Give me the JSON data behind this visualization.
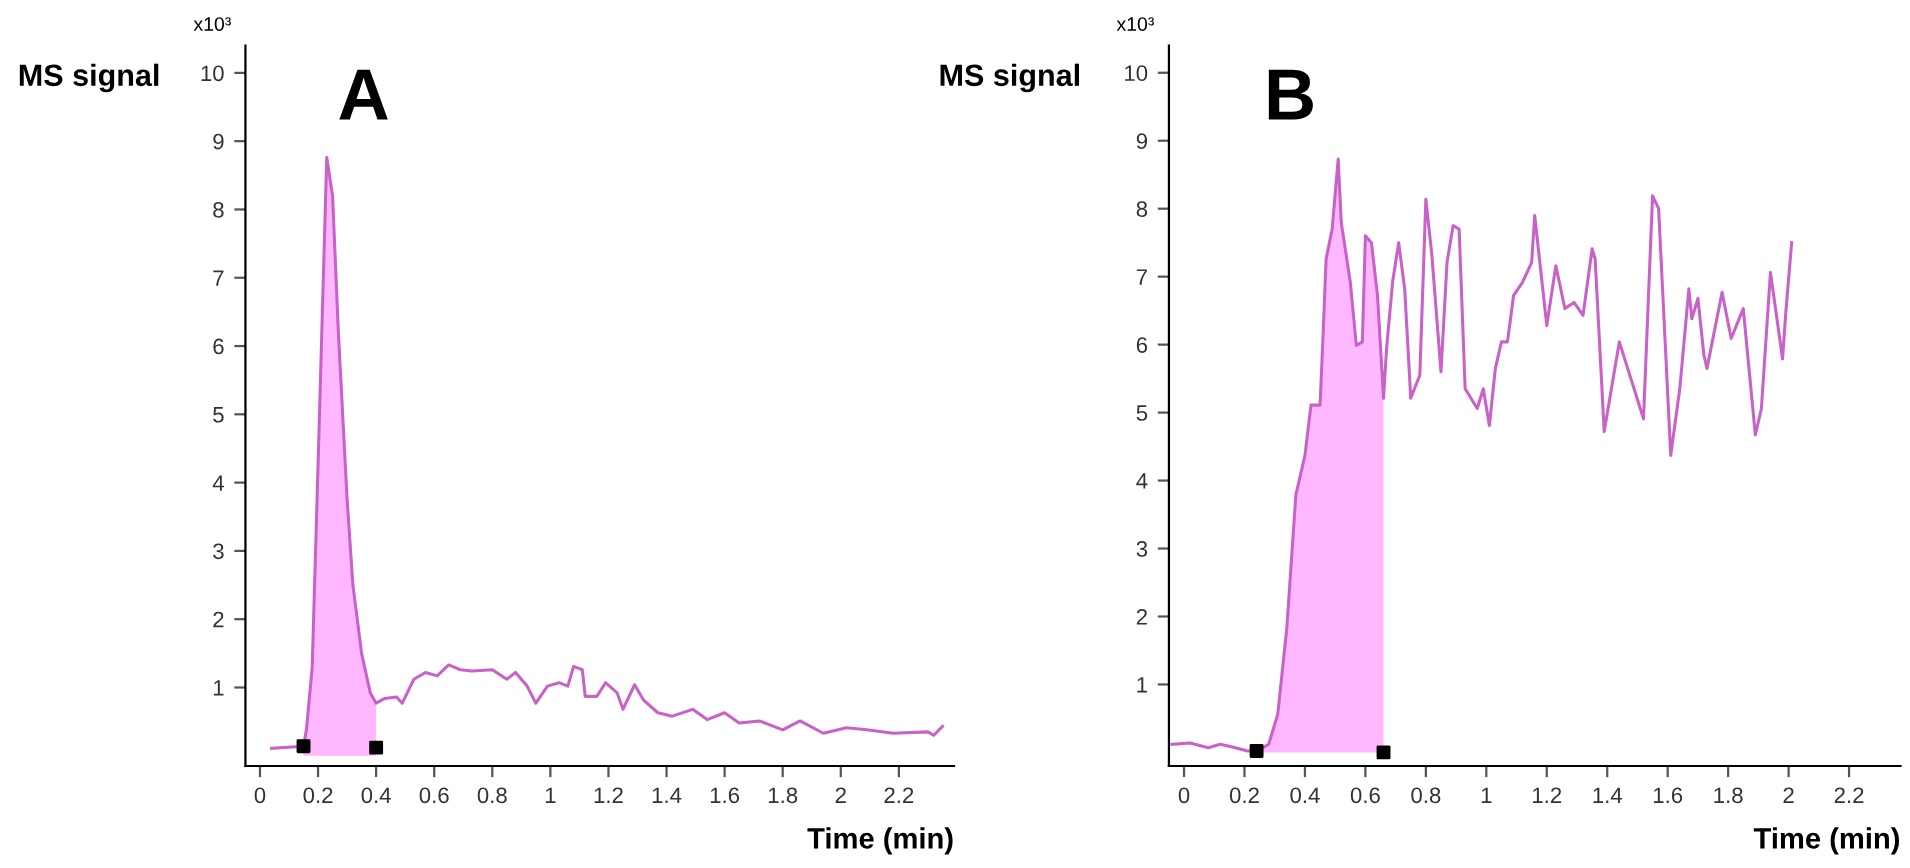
{
  "chart_data": [
    {
      "type": "line",
      "title": "A",
      "ylabel": "MS signal",
      "xlabel": "Time (min)",
      "annotations": [
        "x10³"
      ],
      "xlim": [
        -0.05,
        2.39
      ],
      "ylim": [
        -0.15,
        10.4
      ],
      "xticks": [
        0,
        0.2,
        0.4,
        0.6,
        0.8,
        1,
        1.2,
        1.4,
        1.6,
        1.8,
        2,
        2.2
      ],
      "yticks": [
        1,
        2,
        3,
        4,
        5,
        6,
        7,
        8,
        9,
        10
      ],
      "grid": false,
      "series": [
        {
          "type": "area",
          "color": "#ffb8ff",
          "x": [
            0.15,
            0.16,
            0.18,
            0.2,
            0.23,
            0.25,
            0.27,
            0.3,
            0.32,
            0.35,
            0.38,
            0.4
          ],
          "values": [
            0.14,
            0.38,
            1.3,
            4.25,
            8.76,
            8.2,
            6.2,
            3.76,
            2.5,
            1.5,
            0.92,
            0.77
          ]
        },
        {
          "color": "#c862c8",
          "x": [
            0.04,
            0.15,
            0.16,
            0.18,
            0.2,
            0.23,
            0.25,
            0.27,
            0.3,
            0.32,
            0.35,
            0.38,
            0.4,
            0.43,
            0.47,
            0.49,
            0.53,
            0.57,
            0.61,
            0.65,
            0.69,
            0.73,
            0.8,
            0.85,
            0.88,
            0.92,
            0.95,
            0.99,
            1.03,
            1.06,
            1.08,
            1.11,
            1.12,
            1.16,
            1.19,
            1.23,
            1.25,
            1.29,
            1.32,
            1.37,
            1.42,
            1.49,
            1.54,
            1.6,
            1.65,
            1.72,
            1.8,
            1.86,
            1.94,
            2.02,
            2.09,
            2.18,
            2.3,
            2.32,
            2.35
          ],
          "values": [
            0.11,
            0.14,
            0.38,
            1.3,
            4.25,
            8.76,
            8.2,
            6.2,
            3.76,
            2.5,
            1.5,
            0.92,
            0.77,
            0.84,
            0.86,
            0.77,
            1.12,
            1.22,
            1.17,
            1.33,
            1.26,
            1.24,
            1.26,
            1.12,
            1.22,
            1.02,
            0.77,
            1.02,
            1.07,
            1.02,
            1.31,
            1.26,
            0.87,
            0.87,
            1.07,
            0.92,
            0.68,
            1.04,
            0.82,
            0.63,
            0.58,
            0.68,
            0.53,
            0.63,
            0.48,
            0.51,
            0.38,
            0.51,
            0.33,
            0.41,
            0.38,
            0.33,
            0.35,
            0.3,
            0.43
          ]
        },
        {
          "type": "scatter",
          "color": "#000000",
          "marker": "square",
          "x": [
            0.15,
            0.4
          ],
          "values": [
            0.14,
            0.12
          ]
        }
      ]
    },
    {
      "type": "line",
      "title": "B",
      "ylabel": "MS signal",
      "xlabel": "Time (min)",
      "annotations": [
        "x10³"
      ],
      "xlim": [
        -0.05,
        2.37
      ],
      "ylim": [
        -0.2,
        10.4
      ],
      "xticks": [
        0,
        0.2,
        0.4,
        0.6,
        0.8,
        1,
        1.2,
        1.4,
        1.6,
        1.8,
        2,
        2.2
      ],
      "yticks": [
        1,
        2,
        3,
        4,
        5,
        6,
        7,
        8,
        9,
        10
      ],
      "grid": false,
      "series": [
        {
          "type": "area",
          "color": "#ffb8ff",
          "x": [
            0.24,
            0.28,
            0.31,
            0.34,
            0.37,
            0.4,
            0.42,
            0.45,
            0.46,
            0.47,
            0.49,
            0.51,
            0.52,
            0.55,
            0.57,
            0.59,
            0.6,
            0.62,
            0.64,
            0.66
          ],
          "values": [
            0.02,
            0.12,
            0.56,
            1.83,
            3.79,
            4.37,
            5.11,
            5.11,
            6.14,
            7.26,
            7.7,
            8.73,
            7.8,
            6.92,
            5.99,
            6.04,
            7.6,
            7.5,
            6.72,
            5.21
          ]
        },
        {
          "color": "#c862c8",
          "x": [
            -0.04,
            0.02,
            0.08,
            0.12,
            0.17,
            0.21,
            0.24,
            0.28,
            0.31,
            0.34,
            0.37,
            0.4,
            0.42,
            0.45,
            0.46,
            0.47,
            0.49,
            0.51,
            0.52,
            0.55,
            0.57,
            0.59,
            0.6,
            0.62,
            0.64,
            0.66,
            0.67,
            0.69,
            0.71,
            0.73,
            0.75,
            0.78,
            0.8,
            0.82,
            0.85,
            0.87,
            0.89,
            0.91,
            0.93,
            0.97,
            0.99,
            1.01,
            1.03,
            1.05,
            1.07,
            1.09,
            1.12,
            1.15,
            1.16,
            1.2,
            1.23,
            1.26,
            1.29,
            1.32,
            1.35,
            1.36,
            1.39,
            1.44,
            1.52,
            1.55,
            1.57,
            1.61,
            1.64,
            1.67,
            1.68,
            1.7,
            1.72,
            1.73,
            1.78,
            1.81,
            1.85,
            1.89,
            1.91,
            1.94,
            1.98,
            1.99,
            2.01
          ],
          "values": [
            0.12,
            0.14,
            0.07,
            0.12,
            0.07,
            0.02,
            0.02,
            0.12,
            0.56,
            1.83,
            3.79,
            4.37,
            5.11,
            5.11,
            6.14,
            7.26,
            7.7,
            8.73,
            7.8,
            6.92,
            5.99,
            6.04,
            7.6,
            7.5,
            6.72,
            5.21,
            5.94,
            6.92,
            7.5,
            6.82,
            5.21,
            5.55,
            8.14,
            7.31,
            5.6,
            7.21,
            7.75,
            7.7,
            5.35,
            5.06,
            5.35,
            4.81,
            5.65,
            6.04,
            6.04,
            6.72,
            6.92,
            7.21,
            7.9,
            6.28,
            7.16,
            6.53,
            6.62,
            6.43,
            7.41,
            7.26,
            4.72,
            6.04,
            4.91,
            8.19,
            8.0,
            4.37,
            5.35,
            6.82,
            6.38,
            6.68,
            5.84,
            5.65,
            6.77,
            6.09,
            6.53,
            4.67,
            5.06,
            7.06,
            5.79,
            6.43,
            7.5
          ]
        },
        {
          "type": "scatter",
          "color": "#000000",
          "marker": "square",
          "x": [
            0.24,
            0.66
          ],
          "values": [
            0.02,
            0.0
          ]
        }
      ]
    }
  ]
}
